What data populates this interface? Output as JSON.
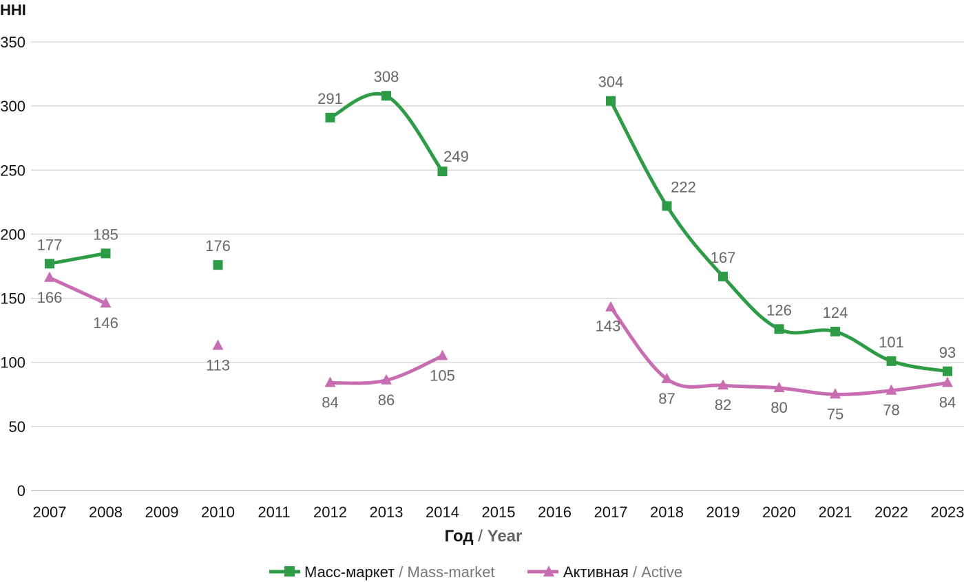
{
  "chart_data": {
    "type": "line",
    "ylabel": "HHI",
    "xlabel": {
      "ru": "Год",
      "sep": " / ",
      "en": "Year"
    },
    "ylim": [
      0,
      350
    ],
    "yticks": [
      0,
      50,
      100,
      150,
      200,
      250,
      300,
      350
    ],
    "categories": [
      "2007",
      "2008",
      "2009",
      "2010",
      "2011",
      "2012",
      "2013",
      "2014",
      "2015",
      "2016",
      "2017",
      "2018",
      "2019",
      "2020",
      "2021",
      "2022",
      "2023"
    ],
    "grid": true,
    "legend_position": "bottom",
    "series": [
      {
        "name": {
          "ru": "Масс-маркет",
          "sep": " / ",
          "en": "Mass-market"
        },
        "color": "#2e9b47",
        "marker": "square",
        "values": [
          177,
          185,
          null,
          176,
          null,
          291,
          308,
          249,
          null,
          null,
          304,
          222,
          167,
          126,
          124,
          101,
          93
        ]
      },
      {
        "name": {
          "ru": "Активная",
          "sep": " / ",
          "en": "Active"
        },
        "color": "#c86db1",
        "marker": "triangle",
        "values": [
          166,
          146,
          null,
          113,
          null,
          84,
          86,
          105,
          null,
          null,
          143,
          87,
          82,
          80,
          75,
          78,
          84
        ]
      }
    ]
  }
}
